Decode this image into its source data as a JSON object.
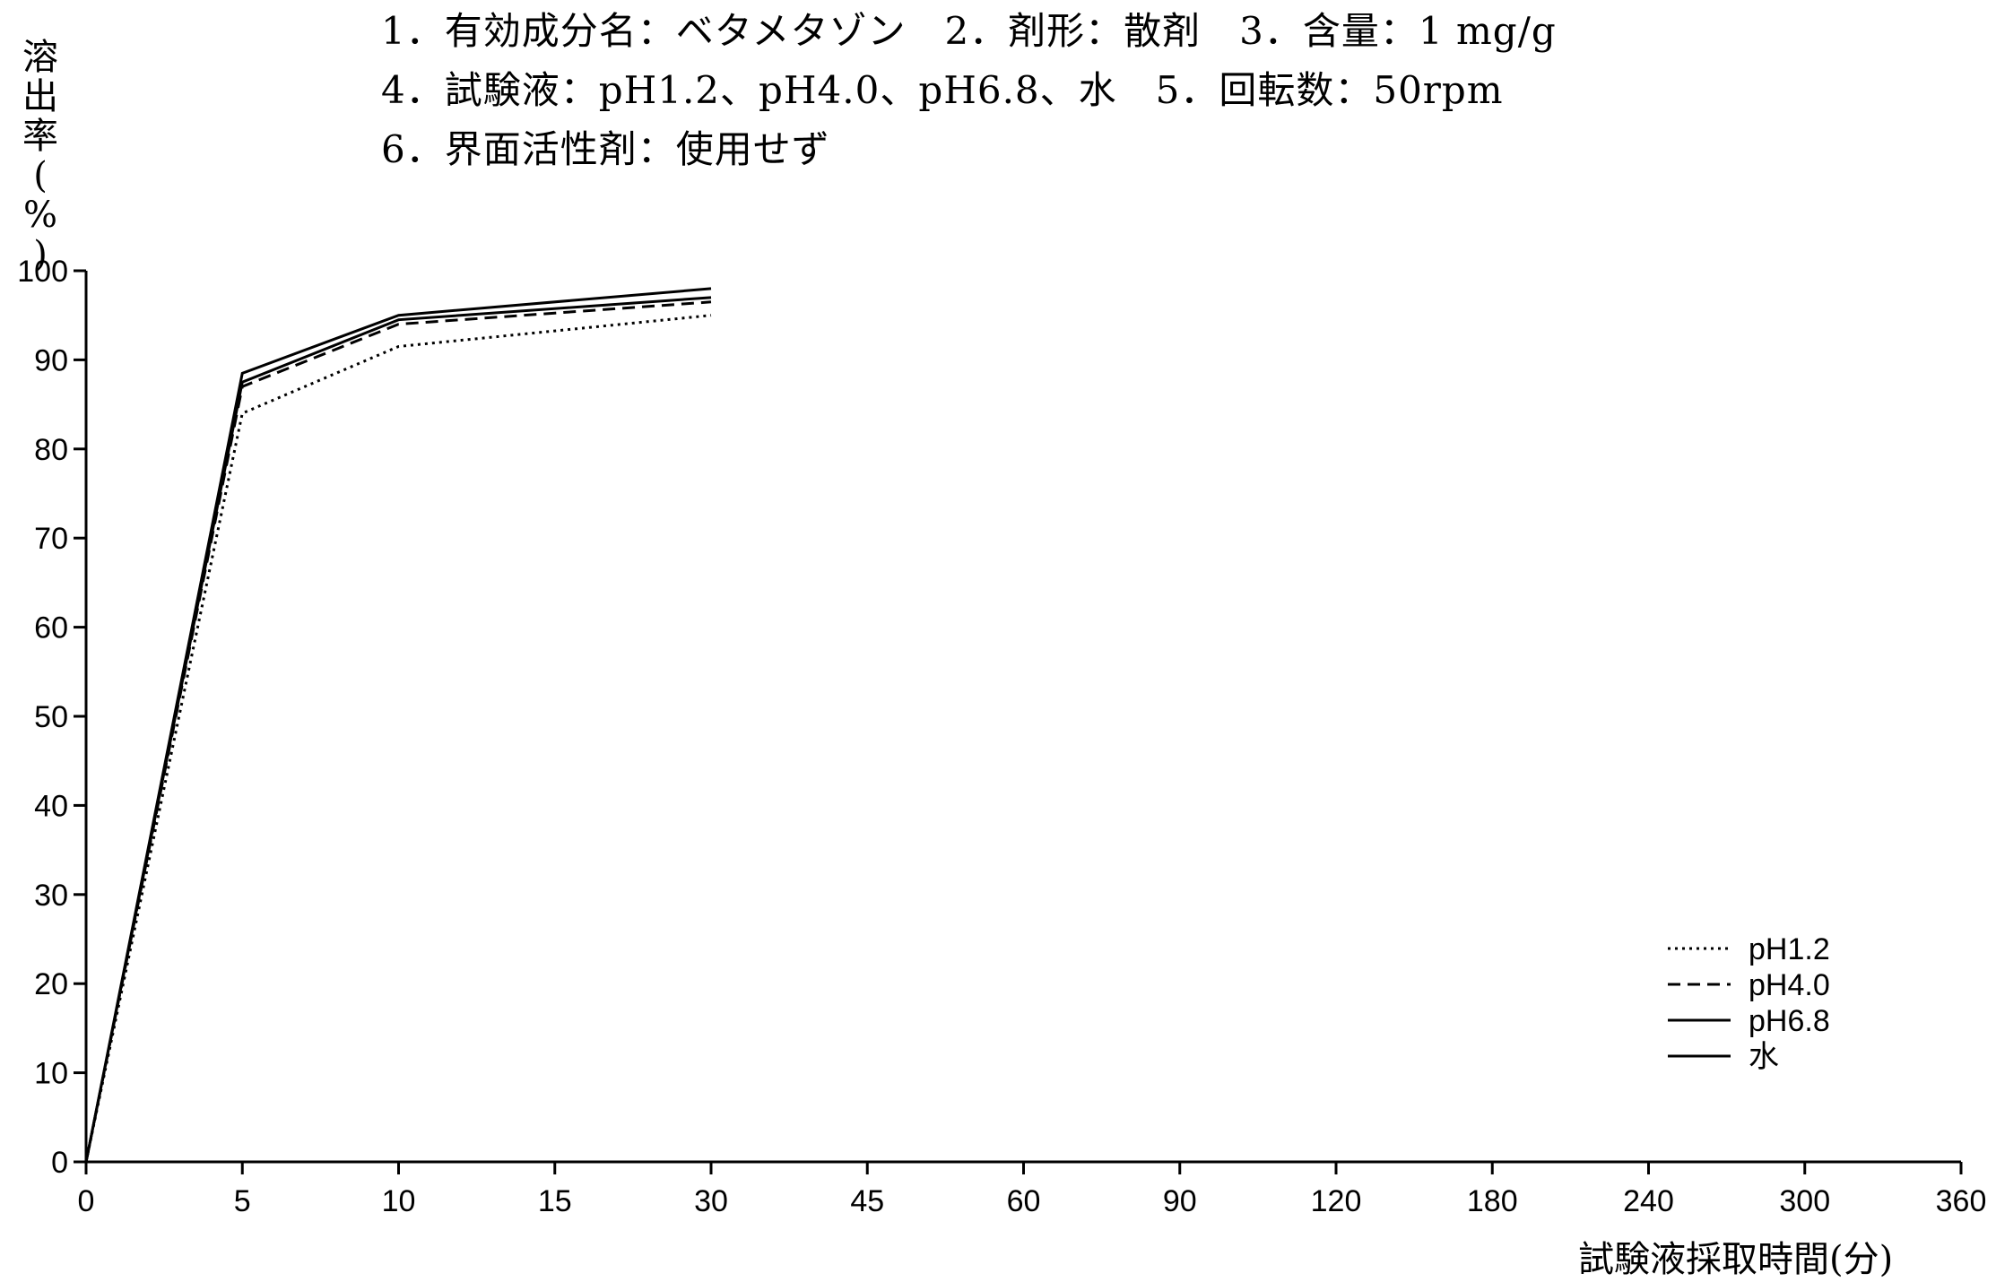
{
  "header": {
    "lines": [
      "1．有効成分名：ベタメタゾン　2．剤形：散剤　3．含量：1 mg/g",
      "4．試験液：pH1.2、pH4.0、pH6.8、水　5．回転数：50rpm",
      "6．界面活性剤：使用せず"
    ]
  },
  "chart_data": {
    "type": "line",
    "title": "",
    "ylabel": "溶出率(%)",
    "xlabel": "試験液採取時間(分)",
    "ylim": [
      0,
      100
    ],
    "yticks": [
      0,
      10,
      20,
      30,
      40,
      50,
      60,
      70,
      80,
      90,
      100
    ],
    "categories": [
      "0",
      "5",
      "10",
      "15",
      "30",
      "45",
      "60",
      "90",
      "120",
      "180",
      "240",
      "300",
      "360"
    ],
    "x": [
      0,
      5,
      10,
      30
    ],
    "series": [
      {
        "name": "pH1.2",
        "style": "dotted",
        "values": [
          0,
          84,
          91.5,
          95
        ]
      },
      {
        "name": "pH4.0",
        "style": "dashed",
        "values": [
          0,
          87,
          94,
          96.5
        ]
      },
      {
        "name": "pH6.8",
        "style": "solid",
        "values": [
          0,
          88.5,
          95,
          98
        ]
      },
      {
        "name": "水",
        "style": "solid",
        "values": [
          0,
          87.5,
          94.5,
          97
        ]
      }
    ],
    "legend_position": "bottom-right",
    "grid": false,
    "colors": {
      "line": "#000000",
      "background": "#ffffff"
    }
  }
}
